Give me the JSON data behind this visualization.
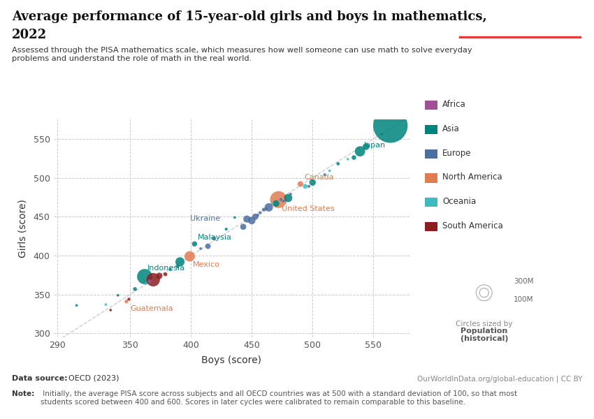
{
  "title_line1": "Average performance of 15-year-old girls and boys in mathematics,",
  "title_line2": "2022",
  "subtitle": "Assessed through the PISA mathematics scale, which measures how well someone can use math to solve everyday\nproblems and understand the role of math in the real world.",
  "xlabel": "Boys (score)",
  "ylabel": "Girls (score)",
  "xlim": [
    287,
    580
  ],
  "ylim": [
    295,
    575
  ],
  "xticks": [
    290,
    350,
    400,
    450,
    500,
    550
  ],
  "yticks": [
    300,
    350,
    400,
    450,
    500,
    550
  ],
  "data_source_bold": "Data source:",
  "data_source_normal": " OECD (2023)",
  "data_source_right": "OurWorldInData.org/global-education | CC BY",
  "note_bold": "Note:",
  "note_normal": " Initially, the average PISA score across subjects and all OECD countries was at 500 with a standard deviation of 100, so that most\nstudents scored between 400 and 600. Scores in later cycles were calibrated to remain comparable to this baseline.",
  "region_colors": {
    "Africa": "#a05195",
    "Asia": "#00847e",
    "Europe": "#4c6fa1",
    "North America": "#e07b54",
    "Oceania": "#3fbbc0",
    "South America": "#8b2020"
  },
  "countries": [
    {
      "name": "",
      "boys": 306,
      "girls": 336,
      "region": "Asia",
      "pop": 4000000
    },
    {
      "name": "",
      "boys": 330,
      "girls": 337,
      "region": "Oceania",
      "pop": 5000000
    },
    {
      "name": "",
      "boys": 334,
      "girls": 330,
      "region": "South America",
      "pop": 7000000
    },
    {
      "name": "Guatemala",
      "boys": 347,
      "girls": 341,
      "region": "North America",
      "pop": 17000000
    },
    {
      "name": "",
      "boys": 340,
      "girls": 349,
      "region": "Asia",
      "pop": 7000000
    },
    {
      "name": "",
      "boys": 349,
      "girls": 344,
      "region": "South America",
      "pop": 11000000
    },
    {
      "name": "",
      "boys": 354,
      "girls": 357,
      "region": "Asia",
      "pop": 18000000
    },
    {
      "name": "Indonesia",
      "boys": 362,
      "girls": 373,
      "region": "Asia",
      "pop": 275000000
    },
    {
      "name": "",
      "boys": 363,
      "girls": 364,
      "region": "Oceania",
      "pop": 5000000
    },
    {
      "name": "",
      "boys": 366,
      "girls": 367,
      "region": "Africa",
      "pop": 18000000
    },
    {
      "name": "",
      "boys": 369,
      "girls": 369,
      "region": "South America",
      "pop": 215000000
    },
    {
      "name": "",
      "boys": 374,
      "girls": 374,
      "region": "South America",
      "pop": 48000000
    },
    {
      "name": "",
      "boys": 379,
      "girls": 376,
      "region": "South America",
      "pop": 18000000
    },
    {
      "name": "",
      "boys": 383,
      "girls": 382,
      "region": "Europe",
      "pop": 11000000
    },
    {
      "name": "",
      "boys": 389,
      "girls": 386,
      "region": "Asia",
      "pop": 14000000
    },
    {
      "name": "",
      "boys": 391,
      "girls": 392,
      "region": "Asia",
      "pop": 100000000
    },
    {
      "name": "Mexico",
      "boys": 399,
      "girls": 399,
      "region": "North America",
      "pop": 128000000
    },
    {
      "name": "Malaysia",
      "boys": 403,
      "girls": 415,
      "region": "Asia",
      "pop": 32000000
    },
    {
      "name": "",
      "boys": 408,
      "girls": 409,
      "region": "Europe",
      "pop": 9000000
    },
    {
      "name": "",
      "boys": 414,
      "girls": 412,
      "region": "Europe",
      "pop": 36000000
    },
    {
      "name": "",
      "boys": 419,
      "girls": 422,
      "region": "Europe",
      "pop": 19000000
    },
    {
      "name": "",
      "boys": 429,
      "girls": 434,
      "region": "Asia",
      "pop": 10000000
    },
    {
      "name": "",
      "boys": 436,
      "girls": 449,
      "region": "Asia",
      "pop": 8000000
    },
    {
      "name": "Ukraine",
      "boys": 443,
      "girls": 437,
      "region": "Europe",
      "pop": 44000000
    },
    {
      "name": "",
      "boys": 446,
      "girls": 447,
      "region": "Europe",
      "pop": 60000000
    },
    {
      "name": "",
      "boys": 450,
      "girls": 445,
      "region": "Europe",
      "pop": 67000000
    },
    {
      "name": "",
      "boys": 453,
      "girls": 450,
      "region": "Europe",
      "pop": 46000000
    },
    {
      "name": "",
      "boys": 455,
      "girls": 452,
      "region": "Europe",
      "pop": 9000000
    },
    {
      "name": "",
      "boys": 457,
      "girls": 455,
      "region": "Europe",
      "pop": 11000000
    },
    {
      "name": "",
      "boys": 460,
      "girls": 459,
      "region": "Europe",
      "pop": 17000000
    },
    {
      "name": "",
      "boys": 462,
      "girls": 460,
      "region": "Europe",
      "pop": 8000000
    },
    {
      "name": "",
      "boys": 464,
      "girls": 462,
      "region": "Europe",
      "pop": 83000000
    },
    {
      "name": "",
      "boys": 467,
      "girls": 467,
      "region": "Oceania",
      "pop": 8000000
    },
    {
      "name": "",
      "boys": 470,
      "girls": 467,
      "region": "Asia",
      "pop": 51000000
    },
    {
      "name": "United States",
      "boys": 472,
      "girls": 472,
      "region": "North America",
      "pop": 335000000
    },
    {
      "name": "",
      "boys": 474,
      "girls": 472,
      "region": "Europe",
      "pop": 10000000
    },
    {
      "name": "",
      "boys": 476,
      "girls": 470,
      "region": "Europe",
      "pop": 5000000
    },
    {
      "name": "",
      "boys": 478,
      "girls": 471,
      "region": "Europe",
      "pop": 7000000
    },
    {
      "name": "",
      "boys": 480,
      "girls": 474,
      "region": "Asia",
      "pop": 80000000
    },
    {
      "name": "",
      "boys": 482,
      "girls": 479,
      "region": "Europe",
      "pop": 8500000
    },
    {
      "name": "Canada",
      "boys": 490,
      "girls": 492,
      "region": "North America",
      "pop": 38000000
    },
    {
      "name": "",
      "boys": 494,
      "girls": 489,
      "region": "Oceania",
      "pop": 26000000
    },
    {
      "name": "",
      "boys": 497,
      "girls": 489,
      "region": "Europe",
      "pop": 10000000
    },
    {
      "name": "",
      "boys": 500,
      "girls": 494,
      "region": "Asia",
      "pop": 51000000
    },
    {
      "name": "",
      "boys": 510,
      "girls": 504,
      "region": "Europe",
      "pop": 10000000
    },
    {
      "name": "",
      "boys": 514,
      "girls": 509,
      "region": "Oceania",
      "pop": 5000000
    },
    {
      "name": "",
      "boys": 521,
      "girls": 518,
      "region": "Asia",
      "pop": 13000000
    },
    {
      "name": "",
      "boys": 529,
      "girls": 524,
      "region": "Oceania",
      "pop": 5000000
    },
    {
      "name": "",
      "boys": 534,
      "girls": 526,
      "region": "Asia",
      "pop": 25000000
    },
    {
      "name": "Japan",
      "boys": 539,
      "girls": 534,
      "region": "Asia",
      "pop": 125000000
    },
    {
      "name": "",
      "boys": 544,
      "girls": 540,
      "region": "Asia",
      "pop": 52000000
    },
    {
      "name": "",
      "boys": 557,
      "girls": 556,
      "region": "Asia",
      "pop": 6000000
    },
    {
      "name": "",
      "boys": 564,
      "girls": 567,
      "region": "Asia",
      "pop": 1400000000
    }
  ],
  "bg_color": "#ffffff",
  "grid_color": "#cccccc",
  "diagonal_color": "#c0c0c0"
}
